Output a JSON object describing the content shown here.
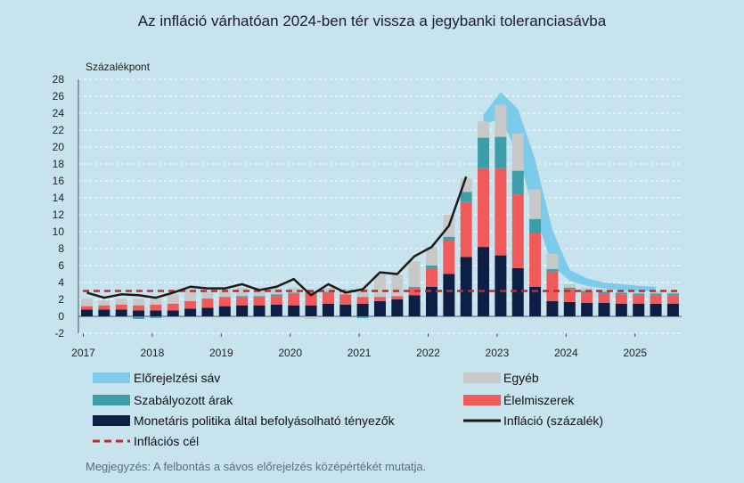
{
  "title": "Az infláció várhatóan 2024-ben tér vissza a jegybanki toleranciasávba",
  "note": "Megjegyzés: A felbontás a sávos előrejelzés középértékét mutatja.",
  "chart_data": {
    "type": "bar",
    "ylabel": "Százalékpont",
    "ylim": [
      -2,
      28
    ],
    "yticks": [
      -2,
      0,
      2,
      4,
      6,
      8,
      10,
      12,
      14,
      16,
      18,
      20,
      22,
      24,
      26,
      28
    ],
    "x_labels": [
      "2017",
      "2018",
      "2019",
      "2020",
      "2021",
      "2022",
      "2023",
      "2024",
      "2025"
    ],
    "quarters": [
      "2017Q1",
      "2017Q2",
      "2017Q3",
      "2017Q4",
      "2018Q1",
      "2018Q2",
      "2018Q3",
      "2018Q4",
      "2019Q1",
      "2019Q2",
      "2019Q3",
      "2019Q4",
      "2020Q1",
      "2020Q2",
      "2020Q3",
      "2020Q4",
      "2021Q1",
      "2021Q2",
      "2021Q3",
      "2021Q4",
      "2022Q1",
      "2022Q2",
      "2022Q3",
      "2022Q4",
      "2023Q1",
      "2023Q2",
      "2023Q3",
      "2023Q4",
      "2024Q1",
      "2024Q2",
      "2024Q3",
      "2024Q4",
      "2025Q1",
      "2025Q2",
      "2025Q3"
    ],
    "series": [
      {
        "name": "Monetáris politika által befolyásolható tényezők",
        "color": "#0e1e45",
        "values": [
          0.8,
          0.8,
          0.8,
          0.7,
          0.7,
          0.7,
          0.9,
          1.0,
          1.2,
          1.3,
          1.3,
          1.4,
          1.3,
          1.3,
          1.5,
          1.4,
          1.5,
          1.8,
          2.0,
          2.5,
          3.5,
          5.0,
          7.0,
          8.2,
          7.2,
          5.7,
          3.5,
          1.8,
          1.7,
          1.6,
          1.6,
          1.5,
          1.5,
          1.5,
          1.5
        ]
      },
      {
        "name": "Élelmiszerek",
        "color": "#f05a5a",
        "values": [
          0.4,
          0.5,
          0.6,
          0.6,
          0.7,
          0.8,
          0.9,
          1.0,
          1.0,
          1.0,
          1.0,
          1.0,
          1.4,
          1.5,
          1.3,
          1.2,
          0.8,
          0.5,
          0.4,
          0.9,
          2.2,
          4.0,
          6.5,
          9.3,
          10.3,
          8.7,
          6.3,
          3.5,
          1.5,
          1.2,
          1.1,
          1.1,
          1.0,
          1.0,
          1.0
        ]
      },
      {
        "name": "Szabályozott árak",
        "color": "#3d9ea8",
        "values": [
          0.0,
          0.0,
          0.0,
          -0.3,
          -0.2,
          0.0,
          0.0,
          0.1,
          0.1,
          0.1,
          0.1,
          0.2,
          0.1,
          0.1,
          0.1,
          0.0,
          -0.2,
          0.0,
          0.0,
          0.1,
          0.3,
          0.4,
          1.2,
          3.6,
          3.7,
          2.8,
          1.7,
          0.3,
          0.2,
          0.2,
          0.2,
          0.2,
          0.2,
          0.2,
          0.2
        ]
      },
      {
        "name": "Egyéb",
        "color": "#c8c8c8",
        "values": [
          0.9,
          0.6,
          0.7,
          0.8,
          0.7,
          1.1,
          1.4,
          1.0,
          1.0,
          1.0,
          1.0,
          0.7,
          0.6,
          -0.3,
          0.5,
          0.6,
          1.0,
          2.6,
          2.5,
          3.0,
          2.2,
          2.6,
          1.6,
          1.9,
          3.8,
          4.4,
          3.5,
          1.8,
          0.4,
          0.4,
          0.3,
          0.3,
          0.3,
          0.3,
          0.2
        ]
      }
    ],
    "forecast_band": {
      "name": "Előrejelzési sáv",
      "color": "#7dcbea",
      "lower": [
        22.5,
        23.5,
        19.0,
        12.0,
        6.0,
        4.2,
        3.6,
        3.3,
        3.1,
        3.0,
        3.0
      ],
      "upper": [
        23.8,
        26.5,
        24.5,
        18.5,
        10.2,
        5.5,
        4.5,
        4.0,
        3.8,
        3.6,
        3.5
      ]
    },
    "inflation": {
      "name": "Infláció (százalék)",
      "color": "#1a1a1a",
      "values": [
        2.8,
        2.2,
        2.6,
        2.5,
        2.2,
        2.8,
        3.5,
        3.3,
        3.3,
        3.8,
        3.1,
        3.5,
        4.4,
        2.5,
        3.8,
        2.8,
        3.2,
        5.2,
        5.0,
        7.1,
        8.2,
        10.7,
        16.5
      ]
    },
    "target": {
      "name": "Inflációs cél",
      "value": 3,
      "color": "#c62828"
    },
    "legend": [
      {
        "key": "band",
        "label": "Előrejelzési sáv"
      },
      {
        "key": "other",
        "label": "Egyéb"
      },
      {
        "key": "regulated",
        "label": "Szabályozott árak"
      },
      {
        "key": "food",
        "label": "Élelmiszerek"
      },
      {
        "key": "monetary",
        "label": "Monetáris politika által befolyásolható tényezők"
      },
      {
        "key": "inflation",
        "label": "Infláció (százalék)"
      },
      {
        "key": "target",
        "label": "Inflációs cél"
      }
    ]
  }
}
